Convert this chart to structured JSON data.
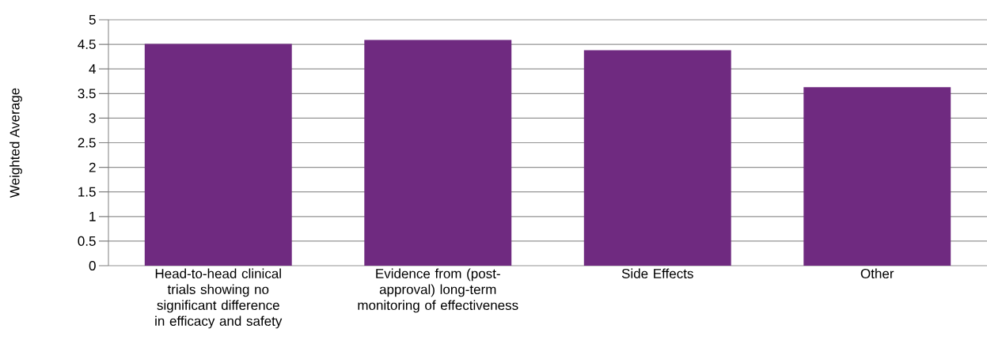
{
  "chart_data": {
    "type": "bar",
    "ylabel": "Weighted Average",
    "categories": [
      "Head-to-head clinical trials showing no significant difference in efficacy and safety",
      "Evidence from (post-approval) long-term monitoring of effectiveness",
      "Side Effects",
      "Other"
    ],
    "values": [
      4.51,
      4.59,
      4.38,
      3.63
    ],
    "color": "#6f2a80",
    "ylim": [
      0,
      5
    ],
    "yticks": [
      0,
      {
        "value": 0.5,
        "label": "0.5"
      },
      1,
      {
        "value": 1.5,
        "label": "1.5"
      },
      2,
      {
        "value": 2.5,
        "label": "2.5"
      },
      3,
      {
        "value": 3.5,
        "label": "3.5"
      },
      4,
      {
        "value": 4.5,
        "label": "4.5"
      },
      5
    ],
    "grid": "y"
  }
}
